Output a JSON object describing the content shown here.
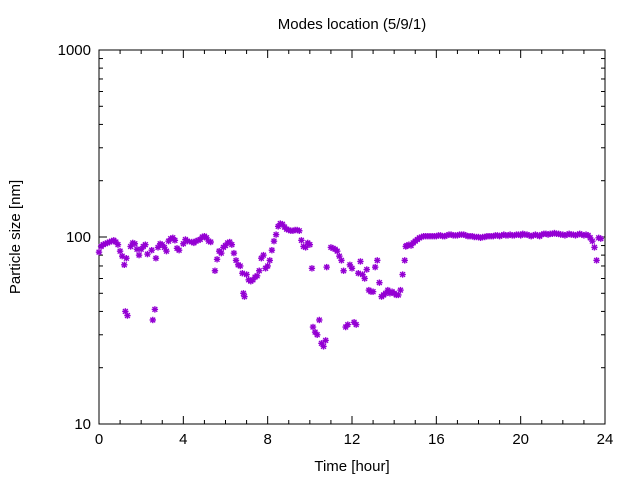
{
  "chart_data": {
    "type": "scatter",
    "title": "Modes location (5/9/1)",
    "xlabel": "Time [hour]",
    "ylabel": "Particle size [nm]",
    "xlim": [
      0,
      24
    ],
    "ylim": [
      10,
      1000
    ],
    "yscale": "log",
    "x_ticks": [
      0,
      4,
      8,
      12,
      16,
      20,
      24
    ],
    "x_tick_labels": [
      "0",
      "4",
      "8",
      "12",
      "16",
      "20",
      "24"
    ],
    "y_ticks": [
      10,
      100,
      1000
    ],
    "y_tick_labels": [
      "10",
      "100",
      "1000"
    ],
    "marker": "asterisk",
    "color": "#9400d3",
    "grid": false,
    "points": [
      [
        0.0,
        83
      ],
      [
        0.1,
        89
      ],
      [
        0.2,
        91
      ],
      [
        0.3,
        92
      ],
      [
        0.4,
        93
      ],
      [
        0.5,
        94
      ],
      [
        0.6,
        95
      ],
      [
        0.7,
        96
      ],
      [
        0.8,
        94
      ],
      [
        0.9,
        91
      ],
      [
        1.0,
        84
      ],
      [
        1.1,
        79
      ],
      [
        1.2,
        71
      ],
      [
        1.3,
        77
      ],
      [
        1.5,
        89
      ],
      [
        1.6,
        93
      ],
      [
        1.7,
        92
      ],
      [
        1.8,
        86
      ],
      [
        1.9,
        80
      ],
      [
        2.0,
        86
      ],
      [
        2.1,
        89
      ],
      [
        2.2,
        91
      ],
      [
        2.3,
        81
      ],
      [
        2.5,
        85
      ],
      [
        2.7,
        77
      ],
      [
        2.8,
        88
      ],
      [
        2.9,
        92
      ],
      [
        3.0,
        91
      ],
      [
        3.1,
        88
      ],
      [
        3.2,
        84
      ],
      [
        3.3,
        95
      ],
      [
        3.4,
        98
      ],
      [
        3.5,
        99
      ],
      [
        3.6,
        96
      ],
      [
        3.7,
        87
      ],
      [
        3.8,
        85
      ],
      [
        4.0,
        92
      ],
      [
        4.1,
        97
      ],
      [
        4.2,
        95
      ],
      [
        4.4,
        94
      ],
      [
        4.5,
        93
      ],
      [
        4.6,
        95
      ],
      [
        4.7,
        96
      ],
      [
        4.8,
        97
      ],
      [
        4.9,
        100
      ],
      [
        5.0,
        101
      ],
      [
        5.1,
        99
      ],
      [
        5.2,
        95
      ],
      [
        5.3,
        94
      ],
      [
        5.5,
        66
      ],
      [
        5.6,
        76
      ],
      [
        5.7,
        84
      ],
      [
        5.8,
        82
      ],
      [
        5.9,
        88
      ],
      [
        6.0,
        90
      ],
      [
        6.1,
        93
      ],
      [
        6.2,
        94
      ],
      [
        6.3,
        91
      ],
      [
        6.4,
        82
      ],
      [
        6.5,
        75
      ],
      [
        6.6,
        71
      ],
      [
        6.7,
        70
      ],
      [
        6.8,
        64
      ],
      [
        6.85,
        50
      ],
      [
        6.9,
        48
      ],
      [
        7.0,
        63
      ],
      [
        7.1,
        59
      ],
      [
        7.2,
        58
      ],
      [
        7.3,
        59
      ],
      [
        7.4,
        61
      ],
      [
        7.5,
        62
      ],
      [
        7.6,
        66
      ],
      [
        7.7,
        77
      ],
      [
        7.8,
        80
      ],
      [
        7.9,
        68
      ],
      [
        8.0,
        70
      ],
      [
        8.1,
        75
      ],
      [
        8.2,
        85
      ],
      [
        8.3,
        95
      ],
      [
        8.4,
        103
      ],
      [
        8.5,
        114
      ],
      [
        8.6,
        118
      ],
      [
        8.7,
        117
      ],
      [
        8.8,
        113
      ],
      [
        8.9,
        110
      ],
      [
        9.0,
        109
      ],
      [
        9.1,
        108
      ],
      [
        9.2,
        108
      ],
      [
        9.3,
        109
      ],
      [
        9.4,
        109
      ],
      [
        9.5,
        108
      ],
      [
        9.6,
        96
      ],
      [
        9.7,
        89
      ],
      [
        9.8,
        88
      ],
      [
        9.9,
        93
      ],
      [
        10.0,
        91
      ],
      [
        10.1,
        68
      ],
      [
        10.15,
        33
      ],
      [
        10.25,
        31
      ],
      [
        10.35,
        30
      ],
      [
        10.45,
        36
      ],
      [
        10.55,
        27
      ],
      [
        10.65,
        26
      ],
      [
        10.75,
        28
      ],
      [
        10.8,
        69
      ],
      [
        11.0,
        88
      ],
      [
        11.1,
        87
      ],
      [
        11.2,
        86
      ],
      [
        11.3,
        84
      ],
      [
        11.4,
        79
      ],
      [
        11.5,
        75
      ],
      [
        11.6,
        66
      ],
      [
        11.7,
        33
      ],
      [
        11.8,
        34
      ],
      [
        11.9,
        71
      ],
      [
        12.0,
        68
      ],
      [
        12.1,
        35
      ],
      [
        12.2,
        34
      ],
      [
        12.3,
        64
      ],
      [
        12.4,
        74
      ],
      [
        12.5,
        63
      ],
      [
        12.6,
        60
      ],
      [
        12.7,
        67
      ],
      [
        12.8,
        52
      ],
      [
        12.9,
        51
      ],
      [
        13.0,
        51
      ],
      [
        13.1,
        69
      ],
      [
        13.2,
        75
      ],
      [
        13.3,
        57
      ],
      [
        13.4,
        48
      ],
      [
        13.5,
        49
      ],
      [
        13.6,
        50
      ],
      [
        13.7,
        52
      ],
      [
        13.8,
        50
      ],
      [
        13.9,
        51
      ],
      [
        14.0,
        50
      ],
      [
        14.1,
        49
      ],
      [
        14.2,
        49
      ],
      [
        14.3,
        52
      ],
      [
        14.4,
        63
      ],
      [
        14.5,
        75
      ],
      [
        14.55,
        89
      ],
      [
        14.6,
        90
      ],
      [
        14.7,
        91
      ],
      [
        14.8,
        90
      ],
      [
        14.9,
        93
      ],
      [
        15.0,
        95
      ],
      [
        15.1,
        97
      ],
      [
        15.2,
        99
      ],
      [
        15.3,
        100
      ],
      [
        15.4,
        101
      ],
      [
        15.5,
        101
      ],
      [
        15.6,
        101
      ],
      [
        15.7,
        101
      ],
      [
        15.8,
        101
      ],
      [
        15.9,
        101
      ],
      [
        16.0,
        101
      ],
      [
        16.1,
        102
      ],
      [
        16.2,
        102
      ],
      [
        16.3,
        101
      ],
      [
        16.4,
        101
      ],
      [
        16.5,
        102
      ],
      [
        16.6,
        103
      ],
      [
        16.7,
        103
      ],
      [
        16.8,
        102
      ],
      [
        16.9,
        102
      ],
      [
        17.0,
        102
      ],
      [
        17.1,
        103
      ],
      [
        17.2,
        103
      ],
      [
        17.3,
        103
      ],
      [
        17.4,
        102
      ],
      [
        17.5,
        101
      ],
      [
        17.6,
        101
      ],
      [
        17.7,
        101
      ],
      [
        17.8,
        100
      ],
      [
        17.9,
        100
      ],
      [
        18.0,
        100
      ],
      [
        18.1,
        99
      ],
      [
        18.2,
        100
      ],
      [
        18.3,
        100
      ],
      [
        18.4,
        101
      ],
      [
        18.5,
        101
      ],
      [
        18.6,
        101
      ],
      [
        18.7,
        101
      ],
      [
        18.8,
        102
      ],
      [
        18.9,
        102
      ],
      [
        19.0,
        101
      ],
      [
        19.1,
        102
      ],
      [
        19.2,
        103
      ],
      [
        19.3,
        102
      ],
      [
        19.4,
        102
      ],
      [
        19.5,
        103
      ],
      [
        19.6,
        102
      ],
      [
        19.7,
        102
      ],
      [
        19.8,
        103
      ],
      [
        19.9,
        103
      ],
      [
        20.0,
        102
      ],
      [
        20.1,
        104
      ],
      [
        20.2,
        103
      ],
      [
        20.3,
        103
      ],
      [
        20.4,
        102
      ],
      [
        20.5,
        101
      ],
      [
        20.6,
        102
      ],
      [
        20.7,
        103
      ],
      [
        20.8,
        102
      ],
      [
        20.9,
        101
      ],
      [
        21.0,
        103
      ],
      [
        21.1,
        104
      ],
      [
        21.2,
        104
      ],
      [
        21.3,
        103
      ],
      [
        21.4,
        104
      ],
      [
        21.5,
        104
      ],
      [
        21.6,
        105
      ],
      [
        21.7,
        104
      ],
      [
        21.8,
        104
      ],
      [
        21.9,
        103
      ],
      [
        22.0,
        103
      ],
      [
        22.1,
        102
      ],
      [
        22.2,
        103
      ],
      [
        22.3,
        104
      ],
      [
        22.4,
        103
      ],
      [
        22.5,
        103
      ],
      [
        22.6,
        102
      ],
      [
        22.7,
        103
      ],
      [
        22.8,
        104
      ],
      [
        22.9,
        103
      ],
      [
        23.0,
        102
      ],
      [
        23.1,
        103
      ],
      [
        23.2,
        102
      ],
      [
        23.3,
        99
      ],
      [
        23.4,
        95
      ],
      [
        23.5,
        88
      ],
      [
        23.6,
        75
      ],
      [
        23.7,
        99
      ],
      [
        23.8,
        98
      ],
      [
        1.25,
        40
      ],
      [
        1.35,
        38
      ],
      [
        2.55,
        36
      ],
      [
        2.65,
        41
      ]
    ]
  }
}
